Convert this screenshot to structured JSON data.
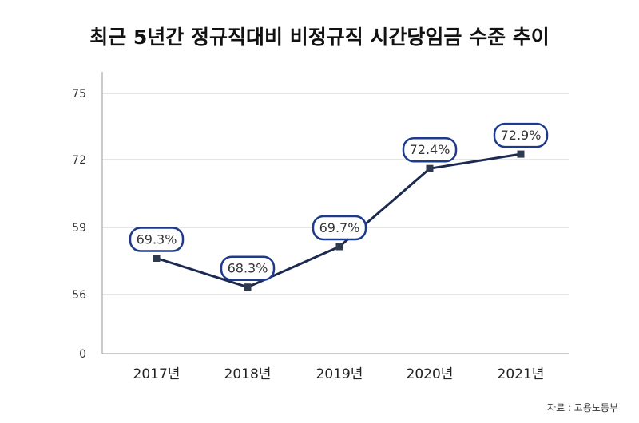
{
  "chart_data": {
    "type": "line",
    "title": "최근 5년간 정규직대비 비정규직 시간당임금 수준 추이",
    "categories": [
      "2017년",
      "2018년",
      "2019년",
      "2020년",
      "2021년"
    ],
    "series": [
      {
        "values": [
          69.3,
          68.3,
          69.7,
          72.4,
          72.9
        ],
        "labels": [
          "69.3%",
          "68.3%",
          "69.7%",
          "72.4%",
          "72.9%"
        ]
      }
    ],
    "y_tick_labels": [
      "0",
      "56",
      "59",
      "72",
      "75"
    ],
    "grid": true,
    "legend": "none",
    "source": "자료 : 고용노동부",
    "colors": {
      "line": "#1c2a52",
      "marker": "#2e3a4f",
      "label_border": "#1e3a8a",
      "grid": "#cccccc",
      "axis": "#999999"
    }
  }
}
